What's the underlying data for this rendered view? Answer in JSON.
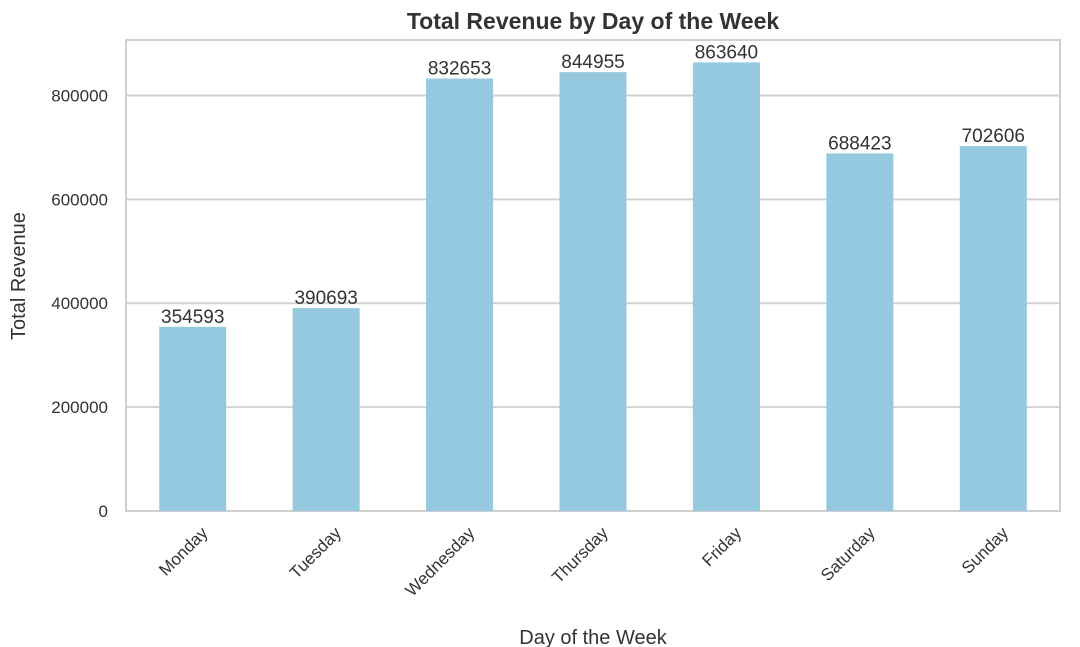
{
  "chart_data": {
    "type": "bar",
    "title": "Total Revenue by Day of the Week",
    "xlabel": "Day of the Week",
    "ylabel": "Total Revenue",
    "categories": [
      "Monday",
      "Tuesday",
      "Wednesday",
      "Thursday",
      "Friday",
      "Saturday",
      "Sunday"
    ],
    "values": [
      354593,
      390693,
      832653,
      844955,
      863640,
      688423,
      702606
    ],
    "value_labels": [
      "354593",
      "390693",
      "832653",
      "844955",
      "863640",
      "688423",
      "702606"
    ],
    "y_ticks": [
      0,
      200000,
      400000,
      600000,
      800000
    ],
    "y_tick_labels": [
      "0",
      "200000",
      "400000",
      "600000",
      "800000"
    ],
    "ylim": [
      0,
      906822
    ],
    "grid": "horizontal",
    "legend": "none",
    "colors": {
      "bar": "#95c9df",
      "grid": "#d2d2d2",
      "spine": "#cfcfcf",
      "text": "#333333",
      "background": "#ffffff"
    }
  }
}
